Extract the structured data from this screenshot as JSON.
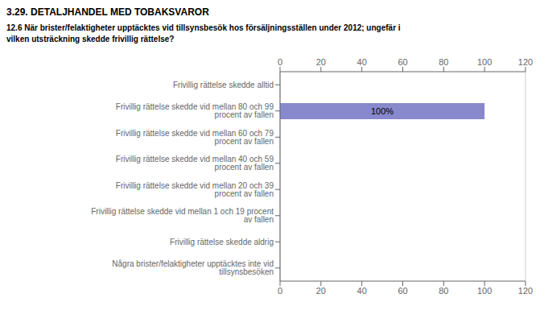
{
  "chart_data": {
    "type": "bar",
    "orientation": "horizontal",
    "title": "3.29. DETALJHANDEL MED TOBAKSVAROR",
    "subtitle": "12.6 När brister/felaktigheter upptäcktes vid tillsynsbesök hos försäljningsställen under 2012; ungefär i\nvilken utsträckning skedde frivillig rättelse?",
    "categories": [
      "Frivillig rättelse skedde alltid",
      "Frivillig rättelse skedde vid mellan 80 och 99 procent av fallen",
      "Frivillig rättelse skedde vid mellan 60 och 79 procent av fallen",
      "Frivillig rättelse skedde vid mellan 40 och 59 procent av fallen",
      "Frivillig rättelse skedde vid mellan 20 och 39 procent av fallen",
      "Frivillig rättelse skedde vid mellan 1 och 19 procent av fallen",
      "Frivillig rättelse skedde aldrig",
      "Några brister/felaktigheter upptäcktes inte vid tillsynsbesöken"
    ],
    "values": [
      0,
      100,
      0,
      0,
      0,
      0,
      0,
      0
    ],
    "value_labels": [
      null,
      "100%",
      null,
      null,
      null,
      null,
      null,
      null
    ],
    "color": "#8888cc",
    "xlim": [
      0,
      120
    ],
    "xticks": [
      0,
      20,
      40,
      60,
      80,
      100,
      120
    ],
    "grid": true
  }
}
